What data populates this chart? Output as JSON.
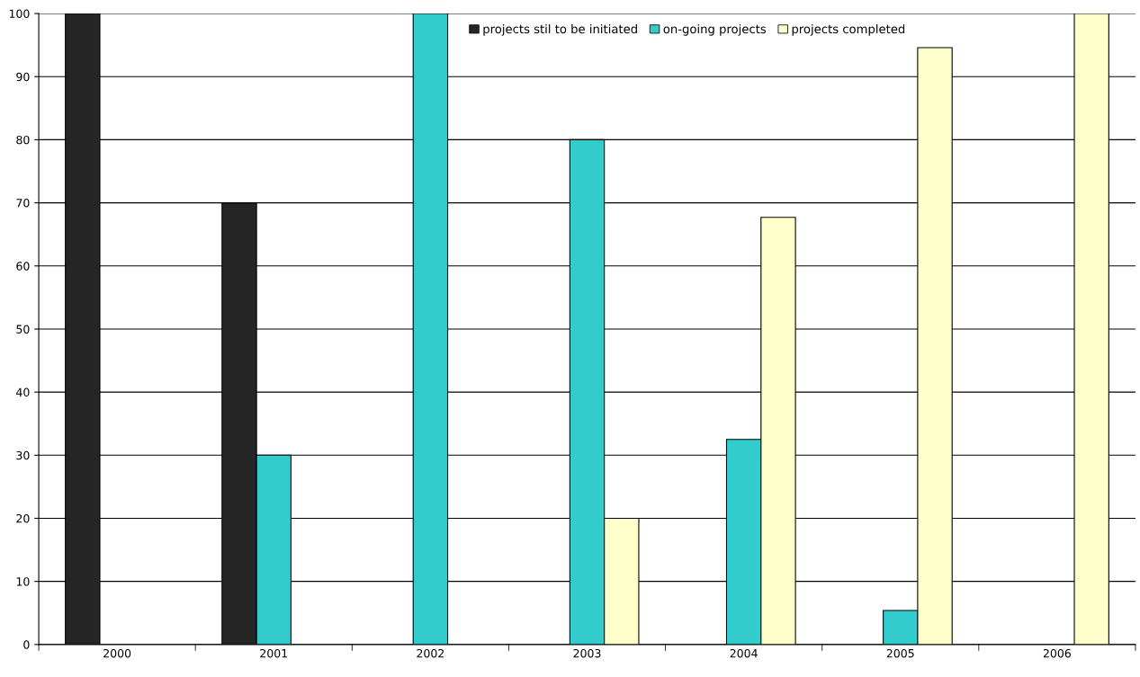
{
  "chart_data": {
    "type": "bar",
    "categories": [
      "2000",
      "2001",
      "2002",
      "2003",
      "2004",
      "2005",
      "2006"
    ],
    "series": [
      {
        "name": "projects stil to be initiated",
        "color": "#262626",
        "values": [
          100,
          70,
          null,
          null,
          null,
          null,
          null
        ]
      },
      {
        "name": "on-going projects",
        "color": "#33cccc",
        "values": [
          null,
          30,
          100,
          80,
          32.5,
          5.4,
          null
        ]
      },
      {
        "name": "projects completed",
        "color": "#ffffcc",
        "values": [
          null,
          null,
          null,
          20,
          67.7,
          94.6,
          100
        ]
      }
    ],
    "ylim": [
      0,
      100
    ],
    "yticks": [
      0,
      10,
      20,
      30,
      40,
      50,
      60,
      70,
      80,
      90,
      100
    ],
    "grid": "y",
    "legend": "top right"
  }
}
